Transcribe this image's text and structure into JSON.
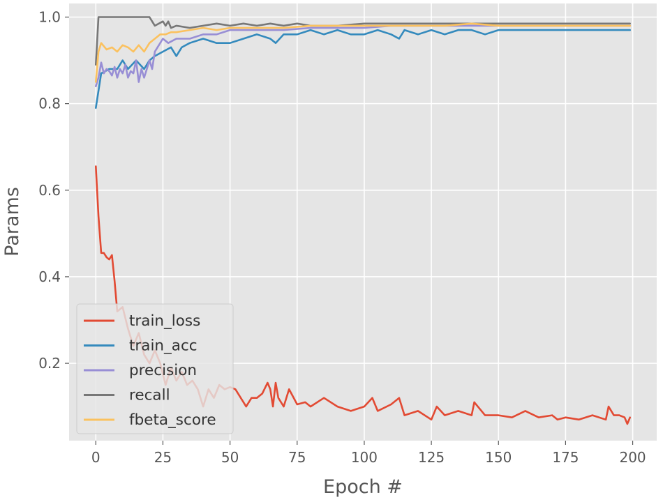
{
  "chart_data": {
    "type": "line",
    "title": "",
    "xlabel": "Epoch #",
    "ylabel": "Params",
    "xlim": [
      -9.95,
      208.95
    ],
    "ylim": [
      0.0213,
      1.0314
    ],
    "xticks": [
      0,
      25,
      50,
      75,
      100,
      125,
      150,
      175,
      200
    ],
    "yticks": [
      0.2,
      0.4,
      0.6,
      0.8,
      1.0
    ],
    "xtick_labels": [
      "0",
      "25",
      "50",
      "75",
      "100",
      "125",
      "150",
      "175",
      "200"
    ],
    "ytick_labels": [
      "0.2",
      "0.4",
      "0.6",
      "0.8",
      "1.0"
    ],
    "grid": true,
    "legend_position": "lower-left",
    "style": "ggplot",
    "colors": {
      "background": "#e5e5e5",
      "grid": "#ffffff",
      "tick_text": "#555555",
      "label_text": "#555555"
    },
    "series": [
      {
        "name": "train_loss",
        "color": "#E24A33",
        "x": [
          0,
          1,
          2,
          3,
          4,
          5,
          6,
          7,
          8,
          10,
          12,
          14,
          16,
          18,
          20,
          22,
          24,
          26,
          28,
          30,
          32,
          34,
          36,
          38,
          40,
          42,
          44,
          46,
          48,
          50,
          52,
          54,
          56,
          58,
          60,
          62,
          64,
          65,
          66,
          67,
          68,
          70,
          72,
          75,
          78,
          80,
          85,
          90,
          95,
          100,
          103,
          105,
          110,
          113,
          115,
          120,
          125,
          127,
          130,
          135,
          140,
          141,
          145,
          150,
          155,
          160,
          165,
          170,
          172,
          175,
          180,
          185,
          190,
          191,
          193,
          195,
          197,
          198,
          199
        ],
        "y": [
          0.655,
          0.54,
          0.455,
          0.455,
          0.445,
          0.44,
          0.45,
          0.39,
          0.32,
          0.33,
          0.28,
          0.24,
          0.27,
          0.22,
          0.2,
          0.23,
          0.2,
          0.15,
          0.19,
          0.16,
          0.18,
          0.15,
          0.16,
          0.14,
          0.1,
          0.14,
          0.12,
          0.15,
          0.14,
          0.145,
          0.14,
          0.12,
          0.1,
          0.12,
          0.12,
          0.13,
          0.155,
          0.14,
          0.1,
          0.155,
          0.12,
          0.1,
          0.14,
          0.105,
          0.11,
          0.1,
          0.12,
          0.1,
          0.09,
          0.1,
          0.12,
          0.09,
          0.105,
          0.12,
          0.08,
          0.09,
          0.07,
          0.1,
          0.08,
          0.09,
          0.08,
          0.11,
          0.08,
          0.08,
          0.075,
          0.09,
          0.075,
          0.08,
          0.07,
          0.075,
          0.07,
          0.08,
          0.07,
          0.1,
          0.08,
          0.08,
          0.075,
          0.06,
          0.075
        ]
      },
      {
        "name": "train_acc",
        "color": "#348ABD",
        "x": [
          0,
          2,
          5,
          8,
          10,
          12,
          15,
          18,
          20,
          22,
          25,
          28,
          30,
          32,
          35,
          40,
          45,
          50,
          55,
          60,
          65,
          67,
          70,
          75,
          80,
          85,
          90,
          95,
          100,
          105,
          110,
          113,
          115,
          120,
          125,
          130,
          135,
          140,
          145,
          150,
          155,
          160,
          165,
          170,
          175,
          180,
          185,
          190,
          195,
          199
        ],
        "y": [
          0.79,
          0.87,
          0.88,
          0.88,
          0.9,
          0.88,
          0.9,
          0.88,
          0.9,
          0.91,
          0.92,
          0.93,
          0.91,
          0.93,
          0.94,
          0.95,
          0.94,
          0.94,
          0.95,
          0.96,
          0.95,
          0.94,
          0.96,
          0.96,
          0.97,
          0.96,
          0.97,
          0.96,
          0.96,
          0.97,
          0.96,
          0.95,
          0.97,
          0.96,
          0.97,
          0.96,
          0.97,
          0.97,
          0.96,
          0.97,
          0.97,
          0.97,
          0.97,
          0.97,
          0.97,
          0.97,
          0.97,
          0.97,
          0.97,
          0.97
        ]
      },
      {
        "name": "precision",
        "color": "#988ED5",
        "x": [
          0,
          1,
          2,
          3,
          4,
          5,
          6,
          7,
          8,
          9,
          10,
          11,
          12,
          13,
          14,
          15,
          16,
          17,
          18,
          19,
          20,
          21,
          22,
          23,
          25,
          27,
          30,
          35,
          40,
          45,
          50,
          60,
          70,
          80,
          90,
          100,
          110,
          120,
          130,
          140,
          150,
          160,
          170,
          180,
          190,
          199
        ],
        "y": [
          0.84,
          0.86,
          0.895,
          0.87,
          0.88,
          0.875,
          0.865,
          0.885,
          0.86,
          0.88,
          0.87,
          0.89,
          0.86,
          0.875,
          0.87,
          0.9,
          0.85,
          0.88,
          0.86,
          0.88,
          0.9,
          0.88,
          0.92,
          0.93,
          0.95,
          0.94,
          0.95,
          0.95,
          0.96,
          0.96,
          0.97,
          0.97,
          0.97,
          0.975,
          0.975,
          0.975,
          0.98,
          0.98,
          0.98,
          0.98,
          0.98,
          0.98,
          0.98,
          0.98,
          0.98,
          0.98
        ]
      },
      {
        "name": "recall",
        "color": "#777777",
        "x": [
          0,
          1,
          2,
          5,
          10,
          15,
          20,
          21,
          22,
          25,
          26,
          27,
          28,
          30,
          35,
          40,
          45,
          50,
          55,
          60,
          65,
          70,
          75,
          80,
          90,
          100,
          110,
          120,
          130,
          140,
          150,
          160,
          170,
          180,
          190,
          199
        ],
        "y": [
          0.89,
          1.0,
          1.0,
          1.0,
          1.0,
          1.0,
          1.0,
          0.99,
          0.98,
          0.99,
          0.98,
          0.99,
          0.975,
          0.98,
          0.975,
          0.98,
          0.985,
          0.98,
          0.985,
          0.98,
          0.985,
          0.98,
          0.985,
          0.98,
          0.98,
          0.985,
          0.985,
          0.985,
          0.985,
          0.985,
          0.985,
          0.985,
          0.985,
          0.985,
          0.985,
          0.985
        ]
      },
      {
        "name": "fbeta_score",
        "color": "#FBC15E",
        "x": [
          0,
          1,
          2,
          4,
          6,
          8,
          10,
          12,
          14,
          16,
          18,
          20,
          22,
          24,
          26,
          28,
          30,
          35,
          40,
          45,
          50,
          60,
          70,
          80,
          90,
          100,
          110,
          120,
          130,
          140,
          150,
          160,
          170,
          180,
          190,
          199
        ],
        "y": [
          0.85,
          0.92,
          0.94,
          0.925,
          0.93,
          0.92,
          0.935,
          0.93,
          0.92,
          0.935,
          0.92,
          0.94,
          0.95,
          0.96,
          0.96,
          0.965,
          0.965,
          0.97,
          0.975,
          0.97,
          0.975,
          0.975,
          0.975,
          0.98,
          0.98,
          0.98,
          0.98,
          0.98,
          0.98,
          0.985,
          0.98,
          0.98,
          0.98,
          0.98,
          0.98,
          0.98
        ]
      }
    ]
  }
}
